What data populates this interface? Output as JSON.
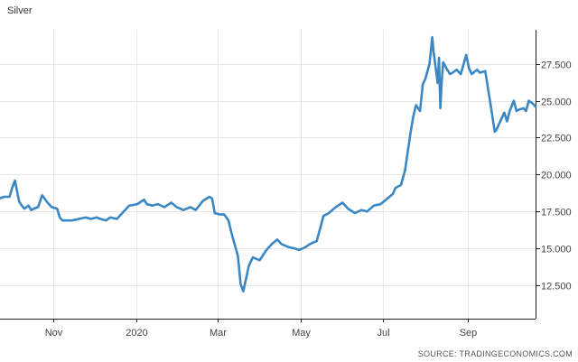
{
  "chart_data": {
    "type": "line",
    "title": "Silver",
    "source": "SOURCE: TRADINGECONOMICS.COM",
    "xlabel": "",
    "ylabel": "",
    "ylim": [
      10.25,
      29.8
    ],
    "xlim": [
      "2019-09-23",
      "2020-10-21"
    ],
    "y_ticks": [
      12.5,
      15,
      17.5,
      20,
      22.5,
      25,
      27.5
    ],
    "y_tick_labels": [
      "12.500",
      "15.000",
      "17.500",
      "20.000",
      "22.500",
      "25.000",
      "27.500"
    ],
    "x_ticks": [
      "2019-11-01",
      "2020-01-01",
      "2020-03-01",
      "2020-05-01",
      "2020-07-01",
      "2020-09-01"
    ],
    "x_tick_labels": [
      "Nov",
      "2020",
      "Mar",
      "May",
      "Jul",
      "Sep"
    ],
    "grid": true,
    "color": "#3b87c4",
    "series": [
      {
        "x": [
          "2019-09-23",
          "2019-09-26",
          "2019-09-30",
          "2019-10-02",
          "2019-10-04",
          "2019-10-07",
          "2019-10-09",
          "2019-10-11",
          "2019-10-14",
          "2019-10-16",
          "2019-10-18",
          "2019-10-21",
          "2019-10-24",
          "2019-10-28",
          "2019-10-31",
          "2019-11-04",
          "2019-11-06",
          "2019-11-08",
          "2019-11-12",
          "2019-11-15",
          "2019-11-20",
          "2019-11-25",
          "2019-11-29",
          "2019-12-03",
          "2019-12-06",
          "2019-12-10",
          "2019-12-13",
          "2019-12-18",
          "2019-12-24",
          "2019-12-27",
          "2020-01-02",
          "2020-01-07",
          "2020-01-09",
          "2020-01-13",
          "2020-01-17",
          "2020-01-22",
          "2020-01-27",
          "2020-01-31",
          "2020-02-05",
          "2020-02-10",
          "2020-02-14",
          "2020-02-19",
          "2020-02-24",
          "2020-02-26",
          "2020-02-28",
          "2020-03-03",
          "2020-03-06",
          "2020-03-09",
          "2020-03-12",
          "2020-03-16",
          "2020-03-18",
          "2020-03-20",
          "2020-03-24",
          "2020-03-27",
          "2020-04-01",
          "2020-04-06",
          "2020-04-10",
          "2020-04-14",
          "2020-04-17",
          "2020-04-22",
          "2020-04-27",
          "2020-04-30",
          "2020-05-05",
          "2020-05-08",
          "2020-05-13",
          "2020-05-18",
          "2020-05-22",
          "2020-05-27",
          "2020-06-01",
          "2020-06-05",
          "2020-06-10",
          "2020-06-15",
          "2020-06-19",
          "2020-06-24",
          "2020-06-29",
          "2020-07-03",
          "2020-07-08",
          "2020-07-10",
          "2020-07-14",
          "2020-07-17",
          "2020-07-21",
          "2020-07-23",
          "2020-07-25",
          "2020-07-28",
          "2020-07-30",
          "2020-08-01",
          "2020-08-04",
          "2020-08-05",
          "2020-08-06",
          "2020-08-07",
          "2020-08-10",
          "2020-08-11",
          "2020-08-12",
          "2020-08-13",
          "2020-08-14",
          "2020-08-17",
          "2020-08-19",
          "2020-08-21",
          "2020-08-24",
          "2020-08-27",
          "2020-08-31",
          "2020-09-02",
          "2020-09-04",
          "2020-09-08",
          "2020-09-10",
          "2020-09-14",
          "2020-09-18",
          "2020-09-21",
          "2020-09-22",
          "2020-09-24",
          "2020-09-28",
          "2020-09-30",
          "2020-10-02",
          "2020-10-05",
          "2020-10-07",
          "2020-10-09",
          "2020-10-12",
          "2020-10-14",
          "2020-10-16",
          "2020-10-19",
          "2020-10-21"
        ],
        "y": [
          18.4,
          18.5,
          18.5,
          19.1,
          19.6,
          18.2,
          17.9,
          17.7,
          17.9,
          17.6,
          17.7,
          17.8,
          18.6,
          18.1,
          17.8,
          17.7,
          17.1,
          16.9,
          16.9,
          16.9,
          17.0,
          17.1,
          17.0,
          17.1,
          17.0,
          16.9,
          17.1,
          17.0,
          17.6,
          17.9,
          18.0,
          18.3,
          18.0,
          17.9,
          18.0,
          17.8,
          18.1,
          17.8,
          17.6,
          17.8,
          17.6,
          18.2,
          18.5,
          18.4,
          17.4,
          17.3,
          17.3,
          16.9,
          15.8,
          14.5,
          12.6,
          12.1,
          13.8,
          14.4,
          14.2,
          14.9,
          15.3,
          15.6,
          15.3,
          15.1,
          15.0,
          14.9,
          15.1,
          15.3,
          15.5,
          17.2,
          17.4,
          17.8,
          18.1,
          17.7,
          17.4,
          17.6,
          17.5,
          17.9,
          18.0,
          18.3,
          18.7,
          19.1,
          19.3,
          20.3,
          22.8,
          23.9,
          24.7,
          24.3,
          26.1,
          26.5,
          27.5,
          28.4,
          29.3,
          28.3,
          26.2,
          27.9,
          24.5,
          26.3,
          27.6,
          27.1,
          26.8,
          26.9,
          27.1,
          26.8,
          28.1,
          27.2,
          26.8,
          27.1,
          26.9,
          27.0,
          24.7,
          22.9,
          23.0,
          23.4,
          24.2,
          23.6,
          24.3,
          25.0,
          24.3,
          24.4,
          24.5,
          24.3,
          25.0,
          24.8,
          24.6
        ]
      }
    ]
  }
}
